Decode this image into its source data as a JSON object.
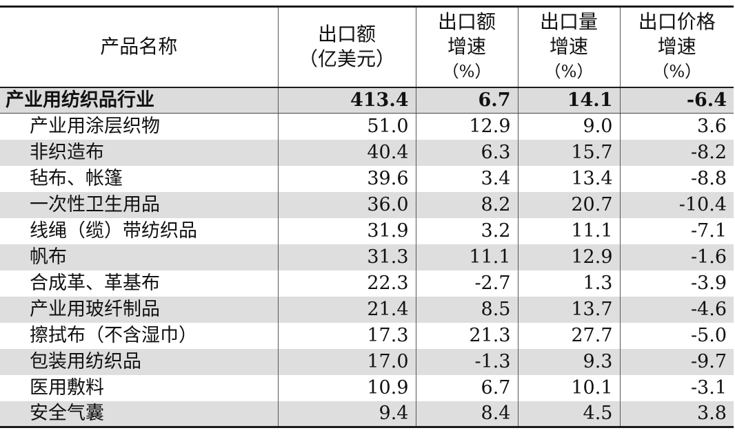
{
  "headers": [
    {
      "lines": [
        "产品名称"
      ]
    },
    {
      "lines": [
        "出口额",
        "（亿美元）"
      ]
    },
    {
      "lines": [
        "出口额",
        "增速",
        "（%）"
      ]
    },
    {
      "lines": [
        "出口量",
        "增速",
        "（%）"
      ]
    },
    {
      "lines": [
        "出口价格",
        "增速",
        "（%）"
      ]
    }
  ],
  "rows": [
    {
      "name": "产业用纺织品行业",
      "value": "413.4",
      "value_growth": "6.7",
      "volume_growth": "14.1",
      "price_growth": "-6.4"
    },
    {
      "name": "产业用涂层织物",
      "value": "51.0",
      "value_growth": "12.9",
      "volume_growth": "9.0",
      "price_growth": "3.6"
    },
    {
      "name": "非织造布",
      "value": "40.4",
      "value_growth": "6.3",
      "volume_growth": "15.7",
      "price_growth": "-8.2"
    },
    {
      "name": "毡布、帐篷",
      "value": "39.6",
      "value_growth": "3.4",
      "volume_growth": "13.4",
      "price_growth": "-8.8"
    },
    {
      "name": "一次性卫生用品",
      "value": "36.0",
      "value_growth": "8.2",
      "volume_growth": "20.7",
      "price_growth": "-10.4"
    },
    {
      "name": "线绳（缆）带纺织品",
      "value": "31.9",
      "value_growth": "3.2",
      "volume_growth": "11.1",
      "price_growth": "-7.1"
    },
    {
      "name": "帆布",
      "value": "31.3",
      "value_growth": "11.1",
      "volume_growth": "12.9",
      "price_growth": "-1.6"
    },
    {
      "name": "合成革、革基布",
      "value": "22.3",
      "value_growth": "-2.7",
      "volume_growth": "1.3",
      "price_growth": "-3.9"
    },
    {
      "name": "产业用玻纤制品",
      "value": "21.4",
      "value_growth": "8.5",
      "volume_growth": "13.7",
      "price_growth": "-4.6"
    },
    {
      "name": "擦拭布（不含湿巾）",
      "value": "17.3",
      "value_growth": "21.3",
      "volume_growth": "27.7",
      "price_growth": "-5.0"
    },
    {
      "name": "包装用纺织品",
      "value": "17.0",
      "value_growth": "-1.3",
      "volume_growth": "9.3",
      "price_growth": "-9.7"
    },
    {
      "name": "医用敷料",
      "value": "10.9",
      "value_growth": "6.7",
      "volume_growth": "10.1",
      "price_growth": "-3.1"
    },
    {
      "name": "安全气囊",
      "value": "9.4",
      "value_growth": "8.4",
      "volume_growth": "4.5",
      "price_growth": "3.8"
    }
  ]
}
